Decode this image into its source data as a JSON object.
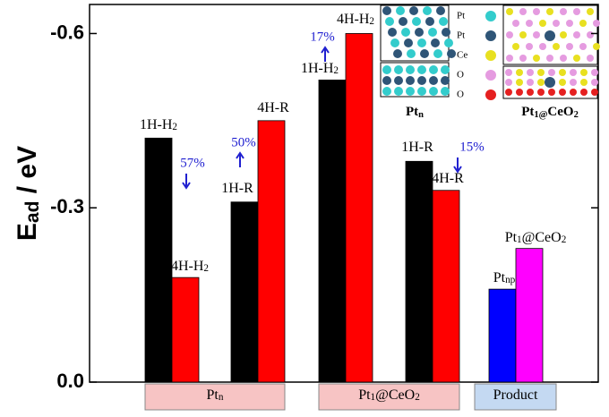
{
  "chart_data": {
    "type": "bar",
    "ylabel": [
      "E",
      "ad",
      " / eV"
    ],
    "categories": [
      [
        "1H-H",
        "2"
      ],
      [
        "4H-H",
        "2"
      ],
      [
        "1H-R"
      ],
      [
        "4H-R"
      ],
      [
        "1H-H",
        "2"
      ],
      [
        "4H-H",
        "2"
      ],
      [
        "1H-R"
      ],
      [
        "4H-R"
      ],
      [
        "Pt",
        "np"
      ],
      [
        "Pt",
        "1",
        "@CeO",
        "2"
      ]
    ],
    "values": [
      -0.42,
      -0.18,
      -0.31,
      -0.45,
      -0.52,
      -0.6,
      -0.38,
      -0.33,
      -0.16,
      -0.23
    ],
    "colors": [
      "#000000",
      "#ff0000",
      "#000000",
      "#ff0000",
      "#000000",
      "#ff0000",
      "#000000",
      "#ff0000",
      "#0000ff",
      "#ff00ff"
    ],
    "groups": [
      {
        "label": [
          "Pt",
          "n"
        ],
        "color": "#f7c4c4"
      },
      {
        "label": [
          "Pt",
          "1",
          "@CeO",
          "2"
        ],
        "color": "#f7c4c4"
      },
      {
        "label": [
          "Product"
        ],
        "color": "#c4d9f2"
      }
    ],
    "annotations": [
      {
        "text": "57%",
        "direction": "down"
      },
      {
        "text": "50%",
        "direction": "up"
      },
      {
        "text": "17%",
        "direction": "up"
      },
      {
        "text": "15%",
        "direction": "down"
      }
    ],
    "ylim": [
      0,
      -0.65
    ],
    "yticks": [
      {
        "value": 0,
        "label": "0.0"
      },
      -0.3,
      -0.6
    ]
  },
  "inset": {
    "legend": [
      {
        "label": "Pt",
        "color": "#33cccc"
      },
      {
        "label": "Pt",
        "color": "#2f5577"
      },
      {
        "label": "Ce",
        "color": "#e8e020"
      },
      {
        "label": "O",
        "color": "#e59be0"
      },
      {
        "label": "O",
        "color": "#e52020"
      }
    ],
    "captions": [
      [
        "Pt",
        "n"
      ],
      [
        "Pt",
        "1@",
        "CeO",
        "2"
      ]
    ]
  }
}
